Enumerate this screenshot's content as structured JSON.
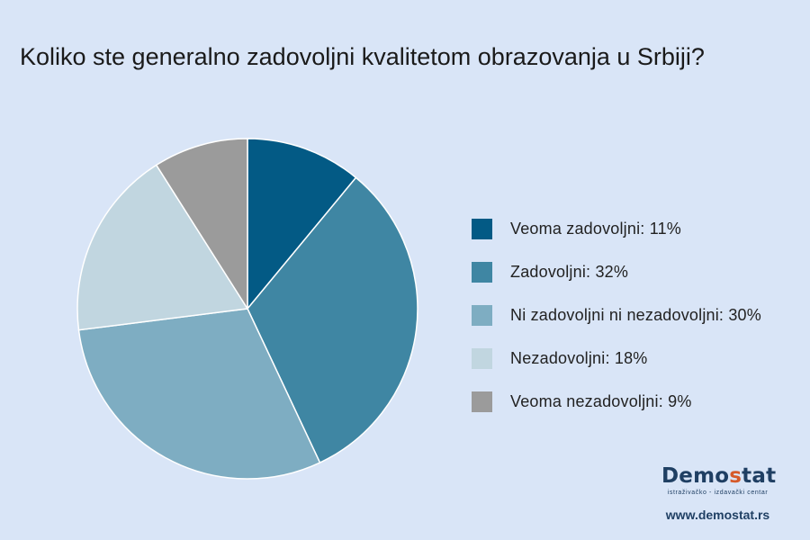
{
  "chart_data": {
    "type": "pie",
    "title": "Koliko ste generalno zadovoljni kvalitetom obrazovanja u Srbiji?",
    "slices": [
      {
        "label": "Veoma zadovoljni",
        "legend": "Veoma zadovoljni: 11%",
        "value": 11,
        "color": "#035a85"
      },
      {
        "label": "Zadovoljni",
        "legend": "Zadovoljni: 32%",
        "value": 32,
        "color": "#3f86a3"
      },
      {
        "label": "Ni zadovoljni ni nezadovoljni",
        "legend": "Ni zadovoljni ni nezadovoljni: 30%",
        "value": 30,
        "color": "#7eadc2"
      },
      {
        "label": "Nezadovoljni",
        "legend": "Nezadovoljni: 18%",
        "value": 18,
        "color": "#c1d6e0"
      },
      {
        "label": "Veoma nezadovoljni",
        "legend": "Veoma nezadovoljni: 9%",
        "value": 9,
        "color": "#9b9b9b"
      }
    ],
    "legend_position": "right"
  },
  "logo": {
    "wordmark_start": "Demo",
    "wordmark_accent": "s",
    "wordmark_end": "tat",
    "tagline": "istraživačko - izdavački  centar",
    "url": "www.demostat.rs"
  },
  "colors": {
    "background": "#d9e5f7",
    "logo_navy": "#1f3f63",
    "logo_accent": "#d65a2a"
  }
}
